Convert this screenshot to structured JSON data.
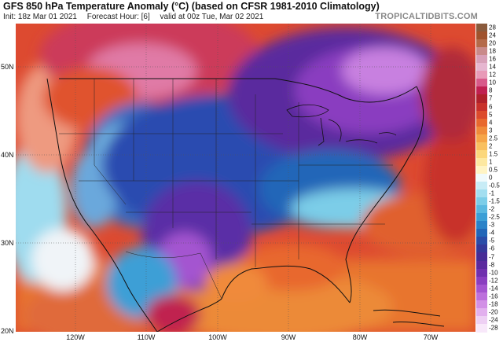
{
  "header": {
    "title": "GFS 850 hPa Temperature Anomaly (°C) (based on CFSR 1981-2010 Climatology)",
    "init": "Init: 18z Mar 01 2021",
    "forecast_hour": "Forecast Hour: [6]",
    "valid": "valid at 00z Tue, Mar 02 2021",
    "brand": "TROPICALTIDBITS.COM"
  },
  "map": {
    "lat_labels": [
      "50N",
      "40N",
      "30N",
      "20N"
    ],
    "lon_labels": [
      "120W",
      "110W",
      "100W",
      "90W",
      "80W",
      "70W"
    ]
  },
  "colorbar": {
    "labels": [
      "28",
      "24",
      "20",
      "18",
      "16",
      "14",
      "12",
      "10",
      "8",
      "7",
      "6",
      "5",
      "4",
      "3",
      "2.5",
      "2",
      "1.5",
      "1",
      "0.5",
      "0",
      "-0.5",
      "-1",
      "-1.5",
      "-2",
      "-2.5",
      "-3",
      "-4",
      "-5",
      "-6",
      "-7",
      "-8",
      "-10",
      "-12",
      "-14",
      "-16",
      "-18",
      "-20",
      "-24",
      "-28"
    ],
    "colors": [
      "#8a5a3c",
      "#a0522d",
      "#b46a4a",
      "#c98a8a",
      "#d8a0b8",
      "#e6b6d0",
      "#e89ab8",
      "#d85a8a",
      "#c02050",
      "#b0202a",
      "#c8302a",
      "#dc4a2c",
      "#e8682e",
      "#f08a3a",
      "#f6a548",
      "#f9c060",
      "#fbd77c",
      "#fde8a0",
      "#fff4c4",
      "#f0fafc",
      "#c8ecf6",
      "#a2def0",
      "#7ccde8",
      "#5ab8e0",
      "#3c9fd6",
      "#2a82c8",
      "#2266b8",
      "#2a4ca8",
      "#34389a",
      "#462c96",
      "#5a2a9e",
      "#7030ae",
      "#8a3ec0",
      "#a454d0",
      "#bc70dc",
      "#d290e6",
      "#e2b0ee",
      "#eed0f4",
      "#f8e8fa"
    ]
  }
}
